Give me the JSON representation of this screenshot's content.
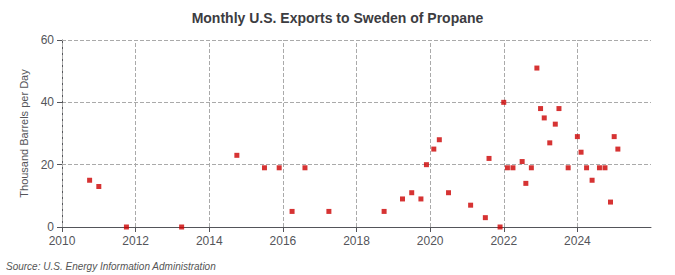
{
  "chart_data": {
    "type": "scatter",
    "title": "Monthly U.S. Exports to Sweden of Propane",
    "ylabel": "Thousand Barrels per Day",
    "annotation": "Source: U.S. Energy Information Administration",
    "color": "#cc0000",
    "marker": "square",
    "grid": true,
    "xlim": [
      2010,
      2026
    ],
    "xticks": [
      2010,
      2012,
      2014,
      2016,
      2018,
      2020,
      2022,
      2024
    ],
    "ylim": [
      0,
      60
    ],
    "yticks": [
      0,
      20,
      40,
      60
    ],
    "x": [
      2010.75,
      2011.0,
      2011.75,
      2013.25,
      2014.75,
      2015.5,
      2015.9,
      2016.25,
      2016.6,
      2017.25,
      2018.75,
      2019.25,
      2019.5,
      2019.75,
      2019.9,
      2020.1,
      2020.25,
      2020.5,
      2021.1,
      2021.5,
      2021.6,
      2021.9,
      2022.0,
      2022.1,
      2022.25,
      2022.5,
      2022.6,
      2022.75,
      2022.9,
      2023.0,
      2023.1,
      2023.25,
      2023.4,
      2023.5,
      2023.75,
      2024.0,
      2024.1,
      2024.25,
      2024.4,
      2024.6,
      2024.75,
      2024.9,
      2025.0,
      2025.1
    ],
    "values": [
      15,
      13,
      0,
      0,
      23,
      19,
      19,
      5,
      19,
      5,
      5,
      9,
      11,
      9,
      20,
      25,
      28,
      11,
      7,
      3,
      22,
      0,
      40,
      19,
      19,
      21,
      14,
      19,
      51,
      38,
      35,
      27,
      33,
      38,
      19,
      29,
      24,
      19,
      15,
      19,
      19,
      8,
      29,
      25
    ]
  }
}
